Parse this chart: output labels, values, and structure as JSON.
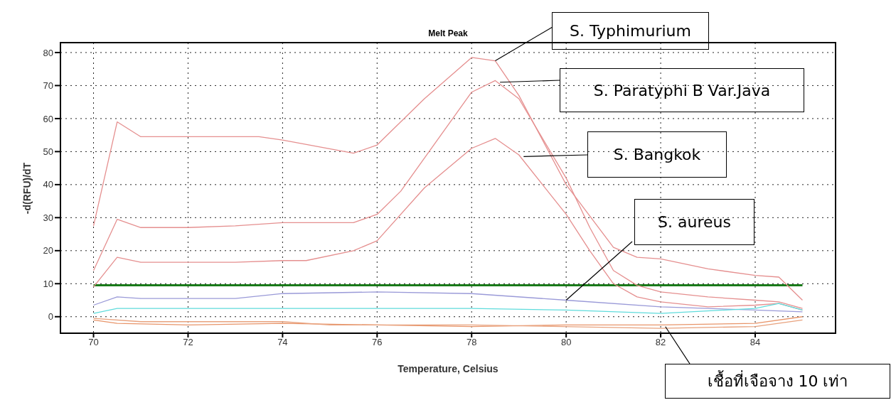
{
  "chart_data": {
    "type": "line",
    "title": "Melt Peak",
    "xlabel": "Temperature, Celsius",
    "ylabel": "-d(RFU)/dT",
    "xlim": [
      69.3,
      85.7
    ],
    "ylim": [
      -5,
      83
    ],
    "xticks": [
      70,
      72,
      74,
      76,
      78,
      80,
      82,
      84
    ],
    "yticks": [
      0,
      10,
      20,
      30,
      40,
      50,
      60,
      70,
      80
    ],
    "grid": true,
    "line_style": "solid",
    "marker": "none",
    "series": [
      {
        "color": "#e58f8f",
        "x": [
          70,
          70.5,
          71,
          72,
          73.5,
          74,
          75.5,
          76,
          77,
          78,
          78.5,
          79,
          80,
          81,
          81.5,
          82,
          83,
          84,
          84.5,
          85
        ],
        "values": [
          27.5,
          59,
          54.5,
          54.5,
          54.5,
          53.5,
          49.5,
          52,
          66,
          78.5,
          77.5,
          67,
          40,
          21,
          18,
          17.5,
          14.5,
          12.5,
          12,
          5
        ]
      },
      {
        "color": "#e58f8f",
        "x": [
          70,
          70.5,
          71,
          72,
          73,
          74,
          75.5,
          76,
          76.5,
          77,
          78,
          78.5,
          79,
          80,
          80.5,
          81,
          81.5,
          82,
          83,
          84,
          84.5,
          85
        ],
        "values": [
          14,
          29.5,
          27,
          27,
          27.5,
          28.5,
          28.5,
          31,
          38,
          48,
          68,
          71.5,
          66,
          42,
          27,
          14,
          9.5,
          7.5,
          6,
          5,
          4.5,
          2.5
        ]
      },
      {
        "color": "#e58f8f",
        "x": [
          70,
          70.5,
          71,
          72,
          73,
          74,
          74.5,
          75.5,
          76,
          77,
          78,
          78.5,
          79,
          80,
          80.5,
          81,
          81.5,
          82,
          83,
          84,
          84.5,
          85
        ],
        "values": [
          9,
          18,
          16.5,
          16.5,
          16.5,
          17,
          17,
          20,
          23,
          39,
          51,
          54,
          49,
          31,
          20,
          10,
          6,
          4.5,
          3,
          3.5,
          4,
          2
        ]
      },
      {
        "color": "#9a9ad8",
        "x": [
          70,
          70.5,
          71,
          73,
          74,
          76,
          78,
          80,
          82,
          84,
          85
        ],
        "values": [
          3.5,
          6,
          5.5,
          5.5,
          7,
          7.5,
          7,
          5,
          3,
          2,
          1.5
        ]
      },
      {
        "color": "#5fdcdc",
        "x": [
          70,
          70.5,
          71,
          74,
          78,
          80,
          82,
          84,
          84.5,
          85
        ],
        "values": [
          1,
          2.5,
          2.5,
          2.5,
          2.5,
          2,
          1,
          2.5,
          4,
          2
        ]
      },
      {
        "color": "#e8956a",
        "x": [
          70,
          70.5,
          72,
          74,
          76,
          78,
          80,
          82,
          84,
          85
        ],
        "values": [
          -1,
          -2,
          -2.5,
          -2,
          -2.5,
          -3,
          -2.5,
          -2.5,
          -2,
          0
        ]
      },
      {
        "color": "#e8a27e",
        "x": [
          70,
          71,
          74,
          75,
          78,
          82,
          84,
          85
        ],
        "values": [
          -0.5,
          -1.5,
          -1.5,
          -2.5,
          -2.5,
          -3.5,
          -3,
          -1
        ]
      }
    ],
    "ref_lines": [
      {
        "axis": "y",
        "value": 9.5,
        "color": "#1a7a1a"
      }
    ],
    "annotations": [
      {
        "text": "S. Typhimurium",
        "x": 78.5,
        "y": 77.5
      },
      "S. Paratyphi B Var.Java",
      "S. Bangkok",
      "S. aureus",
      {
        "text": "เชื้อที่เจือจาง 10 เท่า",
        "x": 82.1,
        "y": -3
      }
    ]
  }
}
